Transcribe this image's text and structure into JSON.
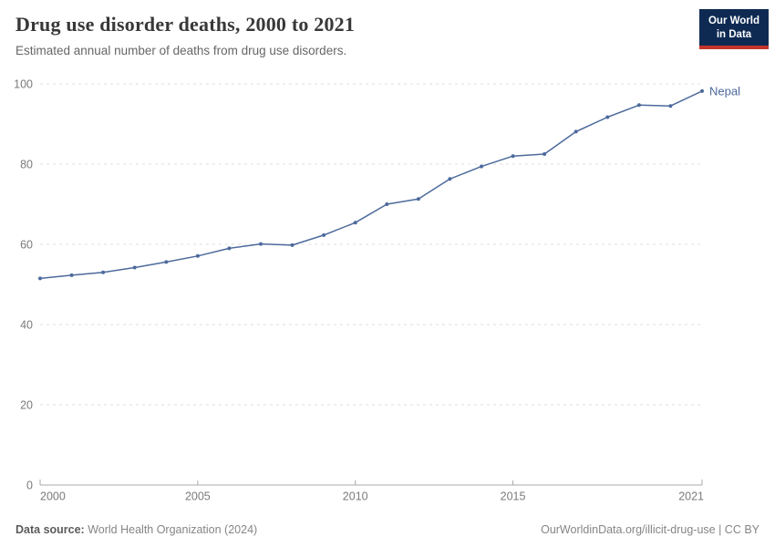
{
  "header": {
    "title": "Drug use disorder deaths, 2000 to 2021",
    "subtitle": "Estimated annual number of deaths from drug use disorders.",
    "logo": {
      "line1": "Our World",
      "line2": "in Data",
      "bg_color": "#0e2a52",
      "stripe_color": "#c4342c"
    }
  },
  "chart_data": {
    "type": "line",
    "title": "Drug use disorder deaths, 2000 to 2021",
    "xlabel": "",
    "ylabel": "",
    "xlim": [
      2000,
      2021
    ],
    "ylim": [
      0,
      100
    ],
    "xticks": [
      2000,
      2005,
      2010,
      2015,
      2021
    ],
    "yticks": [
      0,
      20,
      40,
      60,
      80,
      100
    ],
    "grid": "horizontal-dashed",
    "legend": "end-of-line-label",
    "series": [
      {
        "name": "Nepal",
        "color": "#4C6A9C",
        "x": [
          2000,
          2001,
          2002,
          2003,
          2004,
          2005,
          2006,
          2007,
          2008,
          2009,
          2010,
          2011,
          2012,
          2013,
          2014,
          2015,
          2016,
          2017,
          2018,
          2019,
          2020,
          2021
        ],
        "values": [
          51.5,
          52.3,
          53.0,
          54.2,
          55.6,
          57.1,
          59.0,
          60.1,
          59.8,
          62.3,
          65.4,
          70.0,
          71.3,
          76.3,
          79.4,
          82.0,
          82.5,
          88.1,
          91.7,
          94.7,
          94.5,
          98.2
        ]
      }
    ]
  },
  "footer": {
    "source_label": "Data source:",
    "source_value": "World Health Organization (2024)",
    "credit": "OurWorldinData.org/illicit-drug-use | CC BY"
  },
  "colors": {
    "line": "#4C6A9C",
    "grid": "#dddddd",
    "axis": "#a8a8a8",
    "axis_text": "#7a7a7a",
    "title_text": "#383838",
    "subtitle_text": "#666666"
  }
}
